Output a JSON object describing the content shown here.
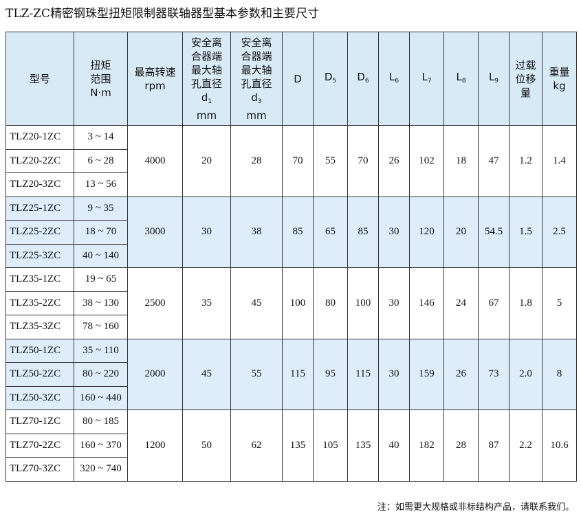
{
  "title": "TLZ-ZC精密钢珠型扭矩限制器联轴器型基本参数和主要尺寸",
  "colors": {
    "header_bg": "#d9eaf7",
    "band_bg": "#deedf9",
    "border": "#333333"
  },
  "headers": [
    {
      "main": "型号",
      "sub": ""
    },
    {
      "main": "扭矩\n范围\nN·m",
      "sub": ""
    },
    {
      "main": "最高转速\nrpm",
      "sub": ""
    },
    {
      "main": "安全离\n合器端\n最大轴\n孔直径\nd",
      "sub": "1",
      "after": "\nmm"
    },
    {
      "main": "安全离\n合器端\n最大轴\n孔直径\nd",
      "sub": "3",
      "after": "\nmm"
    },
    {
      "main": "D",
      "sub": ""
    },
    {
      "main": "D",
      "sub": "5"
    },
    {
      "main": "D",
      "sub": "6"
    },
    {
      "main": "L",
      "sub": "6"
    },
    {
      "main": "L",
      "sub": "7"
    },
    {
      "main": "L",
      "sub": "8"
    },
    {
      "main": "L",
      "sub": "9"
    },
    {
      "main": "过载\n位移\n量",
      "sub": ""
    },
    {
      "main": "重量\nkg",
      "sub": ""
    }
  ],
  "groups": [
    {
      "models": [
        "TLZ20-1ZC",
        "TLZ20-2ZC",
        "TLZ20-3ZC"
      ],
      "torque": [
        "3 ~ 14",
        "6 ~ 28",
        "13 ~ 56"
      ],
      "values": [
        "4000",
        "20",
        "28",
        "70",
        "55",
        "70",
        "26",
        "102",
        "18",
        "47",
        "1.2",
        "1.4"
      ],
      "shaded": false
    },
    {
      "models": [
        "TLZ25-1ZC",
        "TLZ25-2ZC",
        "TLZ25-3ZC"
      ],
      "torque": [
        "9 ~ 35",
        "18 ~ 70",
        "40 ~ 140"
      ],
      "values": [
        "3000",
        "30",
        "38",
        "85",
        "65",
        "85",
        "30",
        "120",
        "20",
        "54.5",
        "1.5",
        "2.5"
      ],
      "shaded": true
    },
    {
      "models": [
        "TLZ35-1ZC",
        "TLZ35-2ZC",
        "TLZ35-3ZC"
      ],
      "torque": [
        "19 ~ 65",
        "38 ~ 130",
        "78 ~ 160"
      ],
      "values": [
        "2500",
        "35",
        "45",
        "100",
        "80",
        "100",
        "30",
        "146",
        "24",
        "67",
        "1.8",
        "5"
      ],
      "shaded": false
    },
    {
      "models": [
        "TLZ50-1ZC",
        "TLZ50-2ZC",
        "TLZ50-3ZC"
      ],
      "torque": [
        "35 ~ 110",
        "80 ~ 220",
        "160 ~ 440"
      ],
      "values": [
        "2000",
        "45",
        "55",
        "115",
        "95",
        "115",
        "30",
        "159",
        "26",
        "73",
        "2.0",
        "8"
      ],
      "shaded": true
    },
    {
      "models": [
        "TLZ70-1ZC",
        "TLZ70-2ZC",
        "TLZ70-3ZC"
      ],
      "torque": [
        "80 ~ 185",
        "160 ~ 370",
        "320 ~ 740"
      ],
      "values": [
        "1200",
        "50",
        "62",
        "135",
        "105",
        "135",
        "40",
        "182",
        "28",
        "87",
        "2.2",
        "10.6"
      ],
      "shaded": false
    }
  ],
  "note": "注：如需更大规格或非标结构产品，请联系我们。"
}
